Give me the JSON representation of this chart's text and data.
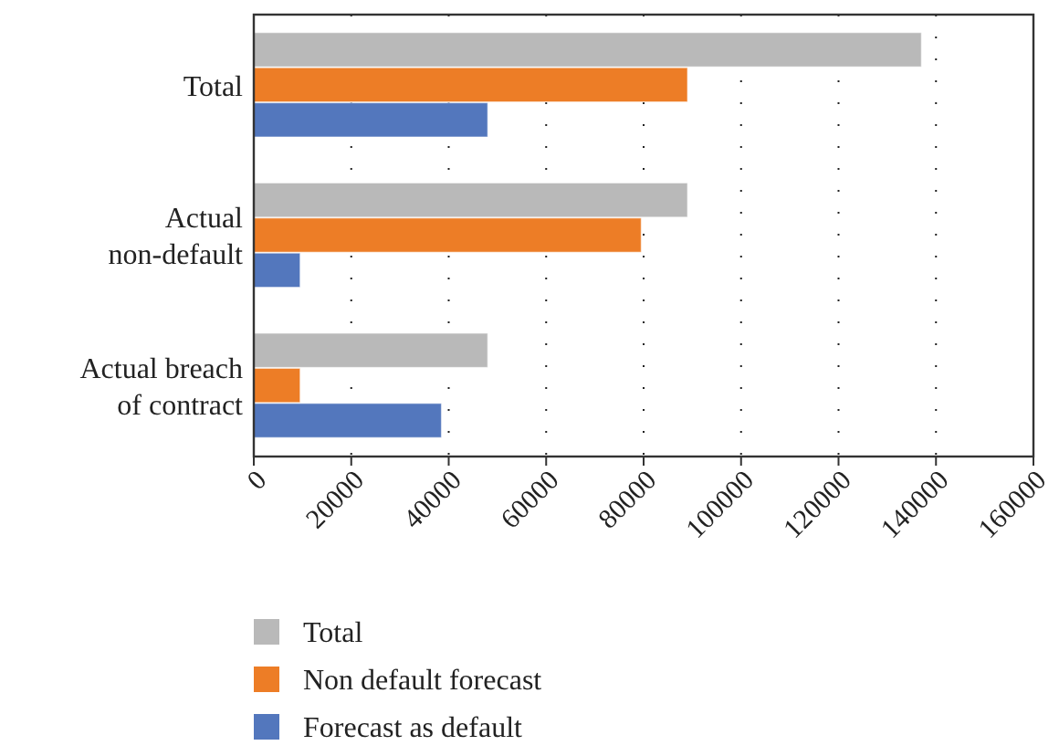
{
  "chart_data": {
    "type": "bar",
    "orientation": "horizontal",
    "categories": [
      "Total",
      "Actual non-default",
      "Actual breach of contract"
    ],
    "series": [
      {
        "name": "Total",
        "color": "#b9b9b9",
        "values": [
          137000,
          89000,
          48000
        ]
      },
      {
        "name": "Non default forecast",
        "color": "#ed7d26",
        "values": [
          89000,
          79500,
          9500
        ]
      },
      {
        "name": "Forecast as default",
        "color": "#5377bd",
        "values": [
          48000,
          9500,
          38500
        ]
      }
    ],
    "xlim": [
      0,
      160000
    ],
    "xticks": [
      0,
      20000,
      40000,
      60000,
      80000,
      100000,
      120000,
      140000,
      160000
    ],
    "grid": "x",
    "legend": "bottom"
  }
}
